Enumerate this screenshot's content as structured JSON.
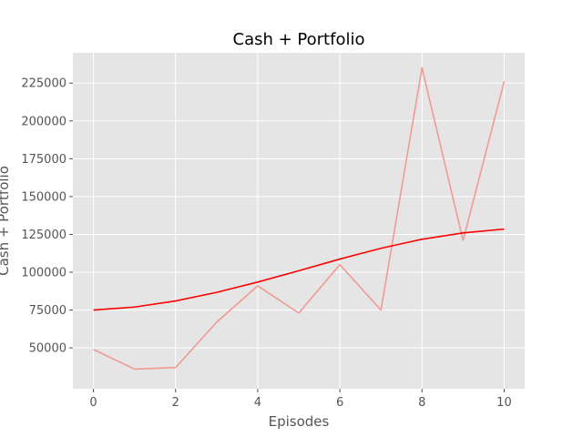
{
  "chart_data": {
    "type": "line",
    "title": "Cash + Portfolio",
    "xlabel": "Episodes",
    "ylabel": "Cash + Portfolio",
    "xlim": [
      -0.5,
      10.5
    ],
    "ylim": [
      23000,
      245000
    ],
    "x_ticks": [
      0,
      2,
      4,
      6,
      8,
      10
    ],
    "y_ticks": [
      50000,
      75000,
      100000,
      125000,
      150000,
      175000,
      200000,
      225000
    ],
    "grid": true,
    "style": "ggplot",
    "x": [
      0,
      1,
      2,
      3,
      4,
      5,
      6,
      7,
      8,
      9,
      10
    ],
    "series": [
      {
        "values": [
          49000,
          36000,
          37000,
          67000,
          91000,
          73000,
          105000,
          75000,
          235000,
          121000,
          226000
        ],
        "color": "#f19a94",
        "role": "raw"
      },
      {
        "values": [
          75000,
          77000,
          81000,
          86700,
          93500,
          101000,
          108700,
          115800,
          121800,
          126000,
          128500
        ],
        "color": "#ff0000",
        "role": "smoothed"
      }
    ]
  },
  "colors": {
    "plot_background": "#e5e5e5",
    "grid": "#ffffff",
    "tick": "#555555"
  }
}
